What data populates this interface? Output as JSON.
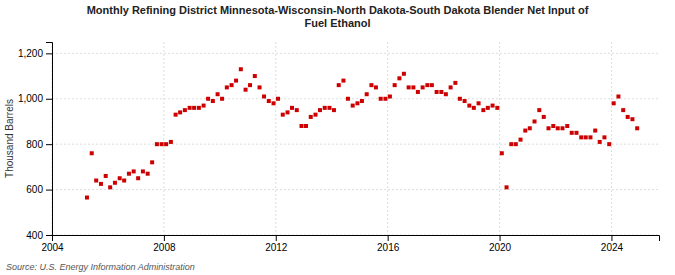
{
  "chart_data": {
    "type": "scatter",
    "title": "Monthly Refining District Minnesota-Wisconsin-North Dakota-South Dakota Blender Net Input of\nFuel Ethanol",
    "ylabel": "Thousand Barrels",
    "source": "Source: U.S. Energy Information Administration",
    "color": "#cc0000",
    "marker": "square",
    "grid": true,
    "xlim": [
      2004,
      2025.7
    ],
    "xticks": [
      2004,
      2008,
      2012,
      2016,
      2020,
      2024
    ],
    "ylim": [
      400,
      1250
    ],
    "yticks": [
      400,
      600,
      800,
      {
        "value": 1000,
        "label": "1,000"
      },
      {
        "value": 1200,
        "label": "1,200"
      }
    ],
    "x": [
      2005.25,
      2005.42,
      2005.58,
      2005.75,
      2005.92,
      2006.08,
      2006.25,
      2006.42,
      2006.58,
      2006.75,
      2006.92,
      2007.08,
      2007.25,
      2007.42,
      2007.58,
      2007.75,
      2007.92,
      2008.08,
      2008.25,
      2008.42,
      2008.58,
      2008.75,
      2008.92,
      2009.08,
      2009.25,
      2009.42,
      2009.58,
      2009.75,
      2009.92,
      2010.08,
      2010.25,
      2010.42,
      2010.58,
      2010.75,
      2010.92,
      2011.08,
      2011.25,
      2011.42,
      2011.58,
      2011.75,
      2011.92,
      2012.08,
      2012.25,
      2012.42,
      2012.58,
      2012.75,
      2012.92,
      2013.08,
      2013.25,
      2013.42,
      2013.58,
      2013.75,
      2013.92,
      2014.08,
      2014.25,
      2014.42,
      2014.58,
      2014.75,
      2014.92,
      2015.08,
      2015.25,
      2015.42,
      2015.58,
      2015.75,
      2015.92,
      2016.08,
      2016.25,
      2016.42,
      2016.58,
      2016.75,
      2016.92,
      2017.08,
      2017.25,
      2017.42,
      2017.58,
      2017.75,
      2017.92,
      2018.08,
      2018.25,
      2018.42,
      2018.58,
      2018.75,
      2018.92,
      2019.08,
      2019.25,
      2019.42,
      2019.58,
      2019.75,
      2019.92,
      2020.08,
      2020.25,
      2020.42,
      2020.58,
      2020.75,
      2020.92,
      2021.08,
      2021.25,
      2021.42,
      2021.58,
      2021.75,
      2021.92,
      2022.08,
      2022.25,
      2022.42,
      2022.58,
      2022.75,
      2022.92,
      2023.08,
      2023.25,
      2023.42,
      2023.58,
      2023.75,
      2023.92,
      2024.08,
      2024.25,
      2024.42,
      2024.58,
      2024.75,
      2024.92
    ],
    "values": [
      565,
      760,
      640,
      625,
      660,
      610,
      630,
      650,
      640,
      670,
      680,
      650,
      680,
      670,
      720,
      800,
      800,
      800,
      810,
      930,
      940,
      950,
      960,
      960,
      960,
      970,
      1000,
      990,
      1020,
      1000,
      1050,
      1060,
      1080,
      1130,
      1040,
      1060,
      1100,
      1050,
      1010,
      990,
      980,
      1000,
      930,
      940,
      960,
      950,
      880,
      880,
      920,
      930,
      950,
      960,
      960,
      950,
      1060,
      1080,
      1000,
      970,
      980,
      990,
      1020,
      1060,
      1050,
      1000,
      1000,
      1010,
      1060,
      1090,
      1110,
      1050,
      1050,
      1030,
      1050,
      1060,
      1060,
      1030,
      1030,
      1020,
      1050,
      1070,
      1000,
      990,
      970,
      960,
      980,
      950,
      960,
      970,
      960,
      760,
      610,
      800,
      800,
      820,
      860,
      870,
      900,
      950,
      920,
      870,
      880,
      870,
      870,
      880,
      850,
      850,
      830,
      830,
      830,
      860,
      810,
      830,
      800,
      980,
      1010,
      950,
      920,
      910,
      870
    ]
  }
}
